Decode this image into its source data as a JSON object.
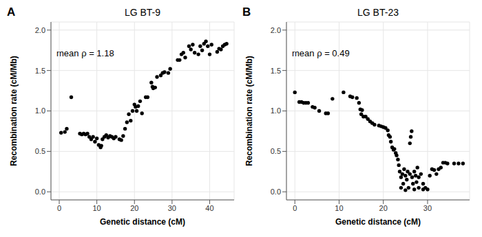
{
  "chart_data": [
    {
      "type": "scatter",
      "panel_label": "A",
      "title": "LG BT-9",
      "annotations": [
        "mean ρ = 1.18"
      ],
      "x_label": "Genetic distance (cM)",
      "y_label": "Recombination rate (cM/Mb)",
      "color": "#000000",
      "marker": "circle",
      "grid": true,
      "xlim": [
        -2.2,
        46.5
      ],
      "xticks": [
        0,
        10,
        20,
        30,
        40
      ],
      "ylim": [
        -0.1,
        2.1
      ],
      "yticks": [
        {
          "value": 0,
          "label": "0.0"
        },
        {
          "value": 0.5,
          "label": "0.5"
        },
        {
          "value": 1,
          "label": "1.0"
        },
        {
          "value": 1.5,
          "label": "1.5"
        },
        {
          "value": 2,
          "label": "2.0"
        }
      ],
      "x": [
        0.5,
        1.5,
        2,
        3.2,
        5.5,
        6,
        6.5,
        7,
        7.5,
        8,
        8.5,
        9,
        9.5,
        10,
        10.5,
        11,
        11.2,
        11.5,
        12,
        12.5,
        13,
        13.5,
        14,
        14.5,
        15,
        16,
        16.5,
        17,
        17.5,
        18,
        18.5,
        19,
        19.5,
        20,
        20.3,
        20.6,
        21,
        21.5,
        22,
        23,
        23.5,
        24.5,
        24.8,
        25,
        25.5,
        26,
        27,
        27.5,
        28,
        29,
        29.5,
        31.5,
        32,
        32.5,
        33,
        33.5,
        34.5,
        35,
        35.5,
        36,
        37,
        37.5,
        38,
        38.5,
        39,
        39.5,
        40,
        40.5,
        42,
        42.5,
        43,
        43.5,
        44,
        44.5
      ],
      "values": [
        0.73,
        0.74,
        0.78,
        1.17,
        0.72,
        0.71,
        0.72,
        0.71,
        0.72,
        0.68,
        0.65,
        0.68,
        0.62,
        0.66,
        0.58,
        0.55,
        0.57,
        0.65,
        0.68,
        0.7,
        0.67,
        0.69,
        0.68,
        0.66,
        0.68,
        0.65,
        0.64,
        0.69,
        0.78,
        0.86,
        0.96,
        0.88,
        1.0,
        1.08,
        1.05,
        1.0,
        1.06,
        1.12,
        0.97,
        1.17,
        1.17,
        1.35,
        1.3,
        1.28,
        1.29,
        1.42,
        1.44,
        1.47,
        1.48,
        1.47,
        1.52,
        1.63,
        1.63,
        1.7,
        1.72,
        1.66,
        1.8,
        1.76,
        1.82,
        1.72,
        1.7,
        1.8,
        1.75,
        1.83,
        1.86,
        1.8,
        1.7,
        1.82,
        1.73,
        1.77,
        1.76,
        1.8,
        1.82,
        1.83
      ]
    },
    {
      "type": "scatter",
      "panel_label": "B",
      "title": "LG BT-23",
      "annotations": [
        "mean ρ = 0.49"
      ],
      "x_label": "Genetic distance (cM)",
      "y_label": "Recombination rate (cM/Mb)",
      "color": "#000000",
      "marker": "circle",
      "grid": true,
      "xlim": [
        -1.9,
        39.5
      ],
      "xticks": [
        0,
        10,
        20,
        30
      ],
      "ylim": [
        -0.1,
        2.1
      ],
      "yticks": [
        {
          "value": 0,
          "label": "0.0"
        },
        {
          "value": 0.5,
          "label": "0.5"
        },
        {
          "value": 1,
          "label": "1.0"
        },
        {
          "value": 1.5,
          "label": "1.5"
        },
        {
          "value": 2,
          "label": "2.0"
        }
      ],
      "x": [
        0,
        1,
        1.5,
        2,
        2.5,
        3,
        4,
        4.5,
        5.5,
        7,
        7.5,
        8.5,
        11,
        12.5,
        13,
        14,
        14.5,
        14.8,
        15,
        15.2,
        15.5,
        16,
        16.5,
        17,
        17.5,
        18,
        19,
        19.5,
        20,
        20.5,
        21,
        21.2,
        21.5,
        21.7,
        22,
        22.3,
        22.5,
        22.8,
        23,
        23.3,
        23.5,
        23.7,
        24,
        24,
        24.3,
        24.5,
        24.7,
        25,
        25,
        25.3,
        25.5,
        25.7,
        26,
        26,
        26.2,
        26.4,
        26.5,
        26.7,
        27,
        27,
        27.3,
        27.5,
        27.7,
        28,
        28,
        28.5,
        29,
        29,
        29.5,
        30,
        30.5,
        31,
        31.5,
        32,
        32.5,
        33,
        33.5,
        34,
        34.5,
        36,
        37,
        38
      ],
      "values": [
        1.23,
        1.11,
        1.11,
        1.1,
        1.1,
        1.1,
        1.05,
        1.04,
        1.0,
        0.97,
        0.97,
        1.15,
        1.23,
        1.18,
        1.17,
        1.16,
        1.1,
        1.02,
        0.96,
        1.01,
        0.93,
        0.93,
        0.9,
        0.87,
        0.85,
        0.83,
        0.82,
        0.81,
        0.8,
        0.79,
        0.76,
        0.7,
        0.68,
        0.62,
        0.55,
        0.52,
        0.53,
        0.48,
        0.45,
        0.4,
        0.33,
        0.25,
        0.18,
        0.05,
        0.22,
        0.1,
        0.28,
        0.02,
        0.2,
        0.15,
        0.25,
        0.05,
        0.22,
        0.6,
        0.68,
        0.75,
        0.18,
        0.1,
        0.25,
        0.03,
        0.2,
        0.12,
        0.3,
        0.05,
        0.18,
        0.22,
        0.03,
        0.1,
        0.05,
        0.03,
        0.2,
        0.28,
        0.27,
        0.22,
        0.28,
        0.3,
        0.36,
        0.36,
        0.35,
        0.35,
        0.35,
        0.35
      ]
    }
  ]
}
